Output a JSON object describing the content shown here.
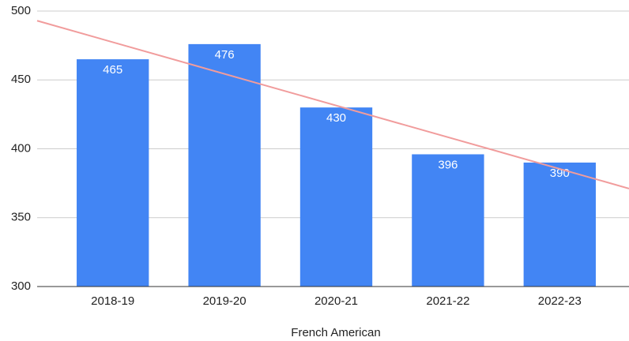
{
  "chart_data": {
    "type": "bar",
    "x_label": "French American",
    "categories": [
      "2018-19",
      "2019-20",
      "2020-21",
      "2021-22",
      "2022-23"
    ],
    "values": [
      465,
      476,
      430,
      396,
      390
    ],
    "color": "#4285f4",
    "ylim": [
      300,
      500
    ],
    "yticks": [
      300,
      350,
      400,
      450,
      500
    ],
    "grid": true,
    "trendline": {
      "type": "linear",
      "color": "#f19c9c"
    }
  }
}
